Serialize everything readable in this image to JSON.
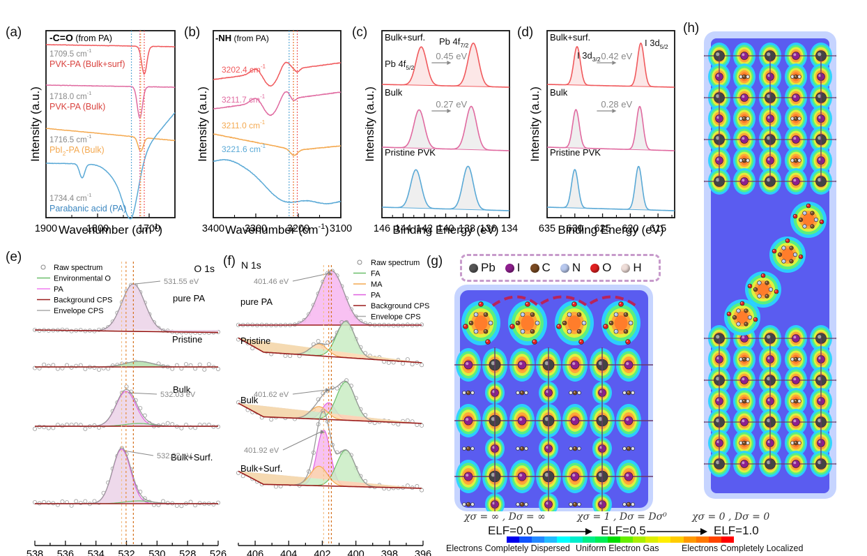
{
  "panels": {
    "a": {
      "label": "(a)"
    },
    "b": {
      "label": "(b)"
    },
    "c": {
      "label": "(c)"
    },
    "d": {
      "label": "(d)"
    },
    "e": {
      "label": "(e)"
    },
    "f": {
      "label": "(f)"
    },
    "g": {
      "label": "(g)"
    },
    "h": {
      "label": "(h)"
    }
  },
  "colors": {
    "red": "#f0595c",
    "pink": "#e06aa0",
    "orange": "#f4a950",
    "blue": "#5aa9d6",
    "gray_annotation": "#888888",
    "pa_fill": "#f7b6f0",
    "env_green": "#6bbf6b",
    "background_red": "#9b1c1c"
  },
  "chart_data": [
    {
      "id": "a",
      "type": "line",
      "title": "-C=O (from PA)",
      "title_bold": "-C=O",
      "title_rest": " (from PA)",
      "xlabel": "Wavenumber (cm⁻¹)",
      "xlabel_main": "Wavenumber (cm",
      "xlabel_sup": "-1",
      "ylabel": "Intensity (a.u.)",
      "xlim": [
        1900,
        1650
      ],
      "xticks": [
        1900,
        1800,
        1700
      ],
      "series": [
        {
          "name": "PVK-PA (Bulk+surf)",
          "peak_label": "1709.5 cm-1",
          "peak": 1709.5,
          "color": "#f0595c",
          "offset": 0.9,
          "depth": 0.25,
          "width": 8
        },
        {
          "name": "PVK-PA (Bulk)",
          "peak_label": "1718.0 cm-1",
          "peak": 1718.0,
          "color": "#e06aa0",
          "offset": 0.65,
          "depth": 0.22,
          "width": 8
        },
        {
          "name": "PbI2-PA (Bulk)",
          "peak_label": "1716.5 cm-1",
          "peak": 1716.5,
          "color": "#f4a950",
          "offset": 0.42,
          "depth": 0.1,
          "width": 10
        },
        {
          "name": "Parabanic acid (PA)",
          "peak_label": "1734.4 cm-1",
          "peak": 1734.4,
          "color": "#5aa9d6",
          "offset": 0.22,
          "depth": 0.18,
          "width": 30
        }
      ],
      "label_names": [
        "PVK-PA (Bulk+surf)",
        "PVK-PA (Bulk)",
        "PbI",
        "Parabanic acid (PA)"
      ],
      "peak_text": [
        "1709.5 cm",
        "1718.0 cm",
        "1716.5 cm",
        "1734.4 cm"
      ]
    },
    {
      "id": "b",
      "type": "line",
      "title_bold": "-NH",
      "title_rest": " (from PA)",
      "xlabel_main": "Wavenumber (cm",
      "xlabel_sup": "-1",
      "ylabel": "Intensity (a.u.)",
      "xlim": [
        3400,
        3100
      ],
      "xticks": [
        3400,
        3300,
        3200,
        3100
      ],
      "series": [
        {
          "name": "PVK-PA (Bulk+surf)",
          "peak": 3202.4,
          "peak_text": "3202.4 cm",
          "color": "#f0595c"
        },
        {
          "name": "PVK-PA (Bulk)",
          "peak": 3211.7,
          "peak_text": "3211.7 cm",
          "color": "#e06aa0"
        },
        {
          "name": "PbI2-PA (Bulk)",
          "peak": 3211.0,
          "peak_text": "3211.0 cm",
          "color": "#f4a950"
        },
        {
          "name": "Parabanic acid (PA)",
          "peak": 3221.6,
          "peak_text": "3221.6 cm",
          "color": "#5aa9d6"
        }
      ]
    },
    {
      "id": "c",
      "type": "line",
      "xlabel": "Binding Energy (eV)",
      "ylabel": "Intensity (a.u.)",
      "xlim": [
        146,
        134
      ],
      "xticks": [
        146,
        144,
        142,
        140,
        138,
        136,
        134
      ],
      "peak_labels": {
        "p1_main": "Pb 4f",
        "p1_sub": "5/2",
        "p2_main": "Pb 4f",
        "p2_sub": "7/2"
      },
      "series": [
        {
          "name": "Bulk+surf.",
          "color": "#f0595c",
          "peaks": [
            142.3,
            137.4
          ],
          "shift_label": "0.45 eV"
        },
        {
          "name": "Bulk",
          "color": "#e06aa0",
          "peaks": [
            142.5,
            137.6
          ],
          "shift_label": "0.27 eV"
        },
        {
          "name": "Pristine PVK",
          "color": "#5aa9d6",
          "peaks": [
            142.8,
            137.9
          ],
          "shift_label": ""
        }
      ]
    },
    {
      "id": "d",
      "type": "line",
      "xlabel": "Binding Energy (eV)",
      "ylabel": "Intensity (a.u.)",
      "xlim": [
        635,
        612
      ],
      "xticks": [
        635,
        630,
        625,
        620,
        615
      ],
      "peak_labels": {
        "p1_main": "I 3d",
        "p1_sub": "3/2",
        "p2_main": "I 3d",
        "p2_sub": "5/2"
      },
      "series": [
        {
          "name": "Bulk+surf.",
          "color": "#f0595c",
          "peaks": [
            629.6,
            618.1
          ],
          "shift_label": "0.42 eV"
        },
        {
          "name": "Bulk",
          "color": "#e06aa0",
          "peaks": [
            629.8,
            618.3
          ],
          "shift_label": "0.28 eV"
        },
        {
          "name": "Pristine PVK",
          "color": "#5aa9d6",
          "peaks": [
            630.0,
            618.5
          ],
          "shift_label": ""
        }
      ]
    },
    {
      "id": "e",
      "type": "line",
      "title": "O 1s",
      "xlabel": "Binding Energy (eV)",
      "xlim": [
        538,
        526
      ],
      "xticks": [
        538,
        536,
        534,
        532,
        530,
        528,
        526
      ],
      "legend": [
        "Raw spectrum",
        "Environmental O",
        "PA",
        "Background CPS",
        "Envelope CPS"
      ],
      "legend_colors": [
        "#888888",
        "#6bbf6b",
        "#f07cf0",
        "#9b1c1c",
        "#aaaaaa"
      ],
      "series": [
        {
          "name": "pure PA",
          "pa_peak": 531.55,
          "pa_amp": 1.0,
          "env_amp": 0.0,
          "peak_label": "531.55 eV"
        },
        {
          "name": "Pristine",
          "pa_peak": null,
          "pa_amp": 0.0,
          "env_amp": 0.12,
          "peak_label": ""
        },
        {
          "name": "Bulk",
          "pa_peak": 532.03,
          "pa_amp": 0.6,
          "env_amp": 0.06,
          "peak_label": "532.03 eV"
        },
        {
          "name": "Bulk+Surf.",
          "pa_peak": 532.32,
          "pa_amp": 1.0,
          "env_amp": 0.08,
          "peak_label": "532.32 eV"
        }
      ]
    },
    {
      "id": "f",
      "type": "line",
      "title": "N 1s",
      "xlabel": "Binding Energy (eV)",
      "xlim": [
        407,
        396
      ],
      "xticks": [
        406,
        404,
        402,
        400,
        398,
        396
      ],
      "legend": [
        "Raw spectrum",
        "FA",
        "MA",
        "PA",
        "Background CPS",
        "Envelope CPS"
      ],
      "legend_colors": [
        "#888888",
        "#6bbf6b",
        "#f4a950",
        "#e060e0",
        "#9b1c1c",
        "#aaaaaa"
      ],
      "series": [
        {
          "name": "pure PA",
          "pa_peak": 401.46,
          "peak_label": "401.46 eV"
        },
        {
          "name": "Pristine",
          "pa_peak": null,
          "peak_label": ""
        },
        {
          "name": "Bulk",
          "pa_peak": 401.62,
          "peak_label": "401.62 eV"
        },
        {
          "name": "Bulk+Surf.",
          "pa_peak": 401.92,
          "peak_label": "401.92 eV"
        }
      ]
    }
  ],
  "g": {
    "legend": [
      {
        "symbol": "Pb",
        "color": "#555555"
      },
      {
        "symbol": "I",
        "color": "#8e1f8e"
      },
      {
        "symbol": "C",
        "color": "#7a4a22"
      },
      {
        "symbol": "N",
        "color": "#b8c8ee"
      },
      {
        "symbol": "O",
        "color": "#e02020"
      },
      {
        "symbol": "H",
        "color": "#eeddd8"
      }
    ]
  },
  "elf": {
    "conditions": [
      "χσ = ∞ ,  Dσ = ∞",
      "χσ = 1 ,  Dσ = Dσ⁰",
      "χσ = 0 ,  Dσ = 0"
    ],
    "values": [
      "ELF=0.0",
      "ELF=0.5",
      "ELF=1.0"
    ],
    "colorbar_labels": [
      "Electrons Completely Dispersed",
      "Uniform Electron Gas",
      "Electrons Completely Localized"
    ],
    "colorbar_colors": [
      "#0000ee",
      "#1155ff",
      "#2288ff",
      "#22bbff",
      "#00ffff",
      "#00eecc",
      "#00ee88",
      "#00ee55",
      "#00dd00",
      "#66ee00",
      "#aaee00",
      "#ddee00",
      "#ffee00",
      "#ffcc00",
      "#ff9900",
      "#ff7700",
      "#ff4400",
      "#ff0000"
    ]
  }
}
